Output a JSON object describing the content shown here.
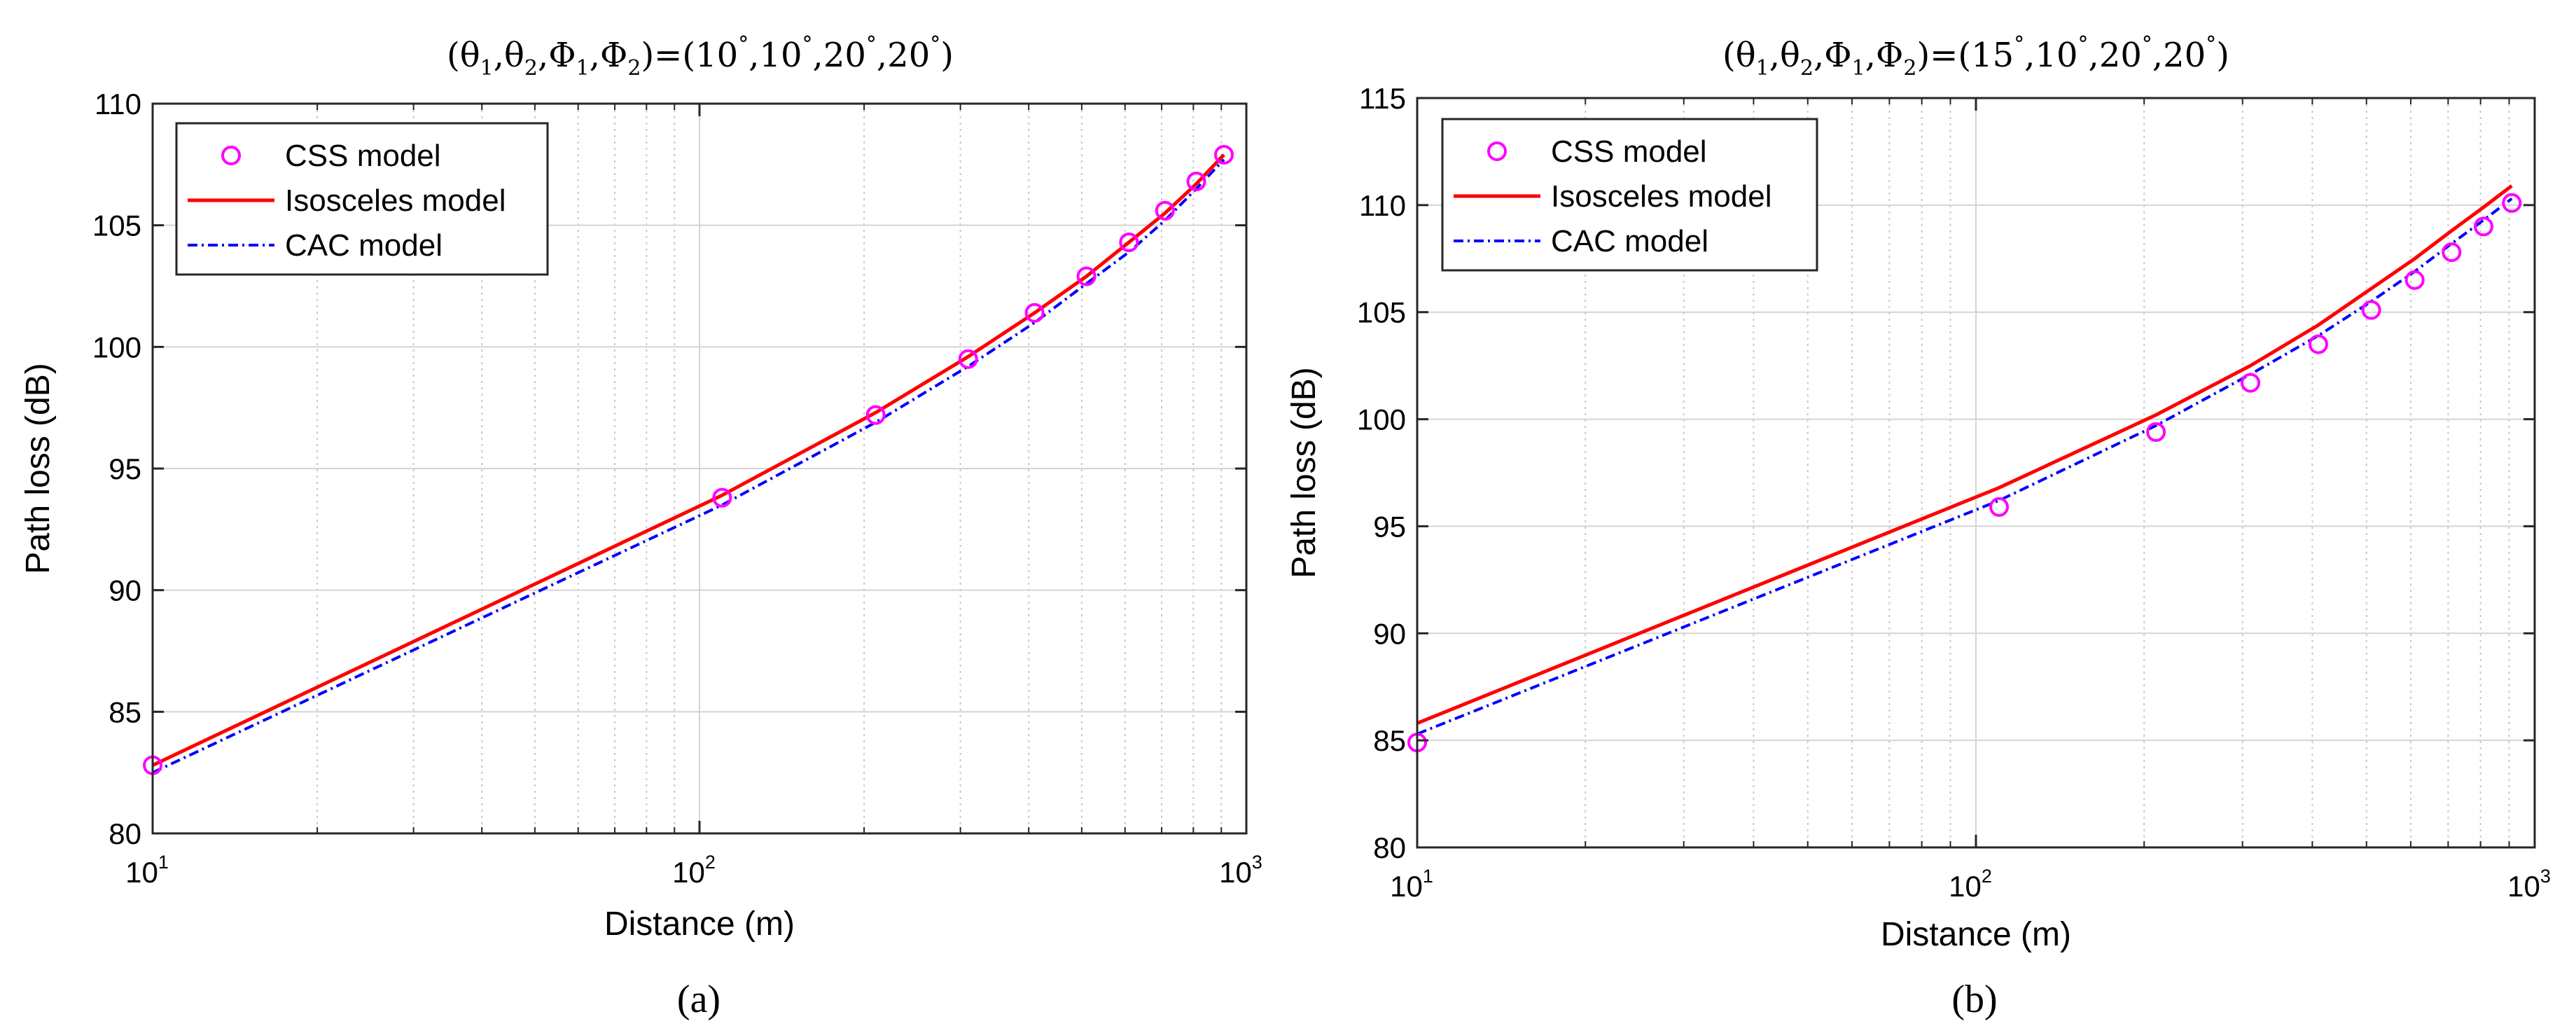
{
  "figure": {
    "captions": [
      "(a)",
      "(b)"
    ]
  },
  "colors": {
    "css": "#ff00ff",
    "isosceles": "#ff0000",
    "cac": "#0000ff",
    "grid": "#d4d4d4",
    "axis": "#262626"
  },
  "chart_data": [
    {
      "type": "line",
      "title": "(θ1,θ2,Φ1,Φ2)=(10°,10°,20°,20°)",
      "title_parts": {
        "open": "(",
        "t1": "θ",
        "s1": "1",
        "t2": "θ",
        "s2": "2",
        "t3": "Φ",
        "s3": "1",
        "t4": "Φ",
        "s4": "2",
        "mid": ")=(",
        "a1": "10",
        "a2": "10",
        "a3": "20",
        "a4": "20",
        "deg": "°",
        "comma": ",",
        "close": ")"
      },
      "xlabel": "Distance (m)",
      "ylabel": "Path loss (dB)",
      "xscale": "log",
      "xlim": [
        10,
        1000
      ],
      "ylim": [
        80,
        110
      ],
      "yticks": [
        80,
        85,
        90,
        95,
        100,
        105,
        110
      ],
      "xticks": [
        {
          "base": "10",
          "exp": "1"
        },
        {
          "base": "10",
          "exp": "2"
        },
        {
          "base": "10",
          "exp": "3"
        }
      ],
      "grid": true,
      "legend_position": "top-left",
      "series": [
        {
          "name": "CSS model",
          "style": "markers",
          "x": [
            10,
            110,
            210,
            310,
            410,
            510,
            610,
            710,
            810,
            910
          ],
          "y": [
            82.8,
            93.8,
            97.2,
            99.5,
            101.4,
            102.9,
            104.3,
            105.6,
            106.8,
            107.9
          ]
        },
        {
          "name": "Isosceles model",
          "style": "solid",
          "x": [
            10,
            110,
            210,
            310,
            410,
            510,
            610,
            710,
            810,
            910
          ],
          "y": [
            82.8,
            93.9,
            97.3,
            99.6,
            101.4,
            102.9,
            104.3,
            105.5,
            106.7,
            107.9
          ]
        },
        {
          "name": "CAC model",
          "style": "dashdot",
          "x": [
            10,
            110,
            210,
            310,
            410,
            510,
            610,
            710,
            810,
            910
          ],
          "y": [
            82.5,
            93.5,
            96.9,
            99.2,
            101.0,
            102.6,
            103.9,
            105.2,
            106.5,
            107.7
          ]
        }
      ]
    },
    {
      "type": "line",
      "title": "(θ1,θ2,Φ1,Φ2)=(15°,10°,20°,20°)",
      "title_parts": {
        "open": "(",
        "t1": "θ",
        "s1": "1",
        "t2": "θ",
        "s2": "2",
        "t3": "Φ",
        "s3": "1",
        "t4": "Φ",
        "s4": "2",
        "mid": ")=(",
        "a1": "15",
        "a2": "10",
        "a3": "20",
        "a4": "20",
        "deg": "°",
        "comma": ",",
        "close": ")"
      },
      "xlabel": "Distance (m)",
      "ylabel": "Path loss (dB)",
      "xscale": "log",
      "xlim": [
        10,
        1000
      ],
      "ylim": [
        80,
        115
      ],
      "yticks": [
        80,
        85,
        90,
        95,
        100,
        105,
        110,
        115
      ],
      "xticks": [
        {
          "base": "10",
          "exp": "1"
        },
        {
          "base": "10",
          "exp": "2"
        },
        {
          "base": "10",
          "exp": "3"
        }
      ],
      "grid": true,
      "legend_position": "top-left",
      "series": [
        {
          "name": "CSS model",
          "style": "markers",
          "x": [
            10,
            110,
            210,
            310,
            410,
            510,
            610,
            710,
            810,
            910
          ],
          "y": [
            84.9,
            95.9,
            99.4,
            101.7,
            103.5,
            105.1,
            106.5,
            107.8,
            109.0,
            110.1
          ]
        },
        {
          "name": "Isosceles model",
          "style": "solid",
          "x": [
            10,
            110,
            210,
            310,
            410,
            510,
            610,
            710,
            810,
            910
          ],
          "y": [
            85.8,
            96.8,
            100.2,
            102.5,
            104.4,
            106.1,
            107.5,
            108.8,
            109.9,
            110.9
          ]
        },
        {
          "name": "CAC model",
          "style": "dashdot",
          "x": [
            10,
            110,
            210,
            310,
            410,
            510,
            610,
            710,
            810,
            910
          ],
          "y": [
            85.3,
            96.2,
            99.7,
            102.1,
            103.9,
            105.5,
            106.9,
            108.2,
            109.3,
            110.3
          ]
        }
      ]
    }
  ]
}
